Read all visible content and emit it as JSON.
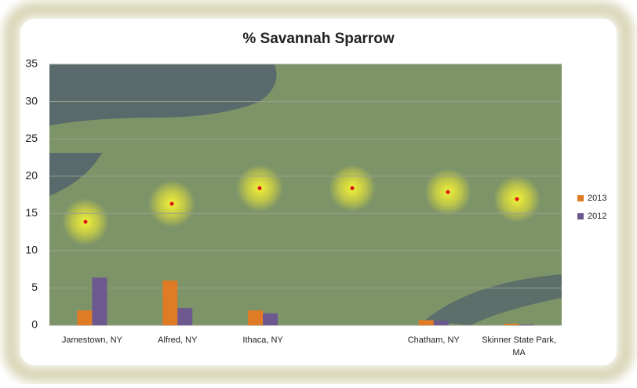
{
  "chart_data": {
    "type": "bar",
    "title": "% Savannah Sparrow",
    "categories": [
      "Jamestown, NY",
      "Alfred, NY",
      "Ithaca, NY",
      null,
      "Chatham, NY",
      "Skinner State Park, MA"
    ],
    "series": [
      {
        "name": "2013",
        "color": "#e07b25",
        "values": [
          2.0,
          6.0,
          2.0,
          0,
          0.7,
          0.2
        ]
      },
      {
        "name": "2012",
        "color": "#6e5890",
        "values": [
          6.4,
          2.3,
          1.6,
          0,
          0.6,
          0.1
        ]
      }
    ],
    "ylim": [
      0,
      35
    ],
    "yticks": [
      0,
      5,
      10,
      15,
      20,
      25,
      30,
      35
    ],
    "grid": true,
    "legend": "right"
  }
}
